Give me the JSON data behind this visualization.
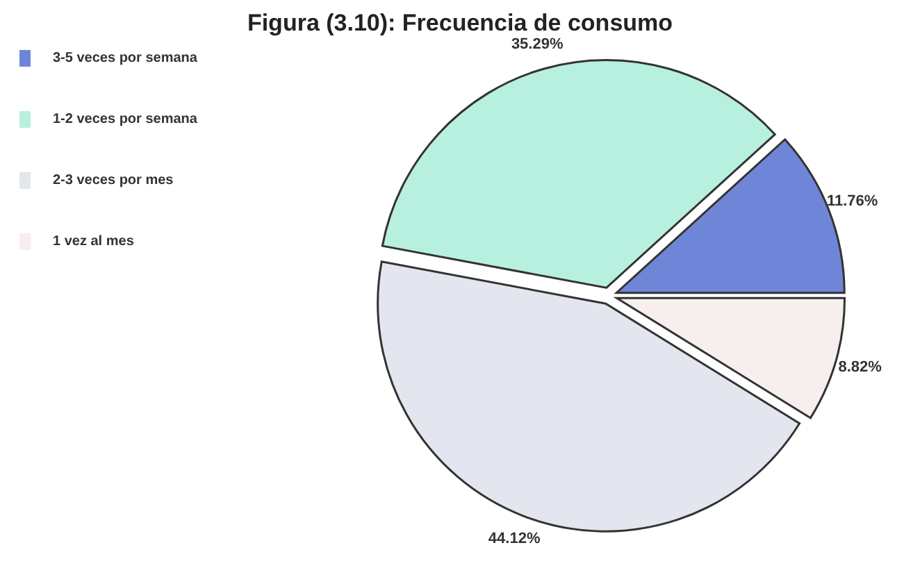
{
  "chart_data": {
    "type": "pie",
    "title": "Figura (3.10): Frecuencia de consumo",
    "categories": [
      "3-5 veces por semana",
      "1-2 veces por semana",
      "2-3 veces por mes",
      "1 vez al mes"
    ],
    "values": [
      11.76,
      35.29,
      44.12,
      8.82
    ],
    "colors": [
      "#6f86d8",
      "#b8f0e0",
      "#e3e6ee",
      "#f7eeee"
    ],
    "value_labels": [
      "11.76%",
      "35.29%",
      "44.12%",
      "8.82%"
    ],
    "legend": "left"
  }
}
